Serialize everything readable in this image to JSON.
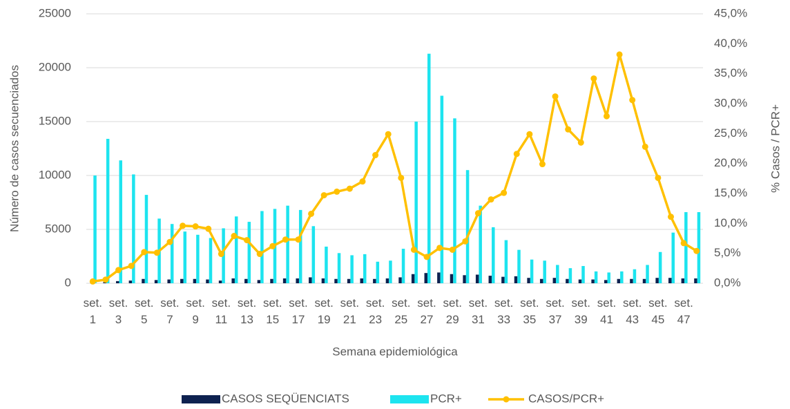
{
  "chart_data": {
    "type": "bar-line",
    "y_label": "Número de casos secuenciados",
    "y2_label": "% Casos / PCR+",
    "x_label": "Semana epidemiológica",
    "categories": [
      "set. 1",
      null,
      "set. 3",
      null,
      "set. 5",
      null,
      "set. 7",
      null,
      "set. 9",
      null,
      "set. 11",
      null,
      "set. 13",
      null,
      "set. 15",
      null,
      "set. 17",
      null,
      "set. 19",
      null,
      "set. 21",
      null,
      "set. 23",
      null,
      "set. 25",
      null,
      "set. 27",
      null,
      "set. 29",
      null,
      "set. 31",
      null,
      "set. 33",
      null,
      "set. 35",
      null,
      "set. 37",
      null,
      "set. 39",
      null,
      "set. 41",
      null,
      "set. 43",
      null,
      "set. 45",
      null,
      "set. 47",
      null
    ],
    "series": [
      {
        "name": "CASOS SEQÜENCIATS",
        "type": "bar",
        "color": "#0e2250",
        "values": [
          50,
          100,
          200,
          250,
          400,
          300,
          350,
          400,
          400,
          350,
          250,
          450,
          400,
          300,
          400,
          450,
          450,
          550,
          450,
          400,
          400,
          450,
          400,
          450,
          550,
          850,
          950,
          1000,
          850,
          750,
          800,
          700,
          600,
          650,
          500,
          400,
          500,
          400,
          350,
          350,
          300,
          400,
          400,
          400,
          500,
          500,
          450,
          450
        ]
      },
      {
        "name": "PCR+",
        "type": "bar",
        "color": "#1de4ef",
        "values": [
          10000,
          13400,
          11400,
          10100,
          8200,
          6000,
          5500,
          4800,
          4500,
          4200,
          5100,
          6200,
          5700,
          6700,
          6900,
          7200,
          6800,
          5300,
          3400,
          2800,
          2600,
          2700,
          2000,
          2100,
          3200,
          15000,
          21300,
          17400,
          15300,
          10500,
          7200,
          5200,
          4000,
          3100,
          2200,
          2100,
          1700,
          1400,
          1600,
          1100,
          1000,
          1100,
          1300,
          1700,
          2900,
          4700,
          6600,
          6600
        ]
      },
      {
        "name": "CASOS/PCR+",
        "type": "line",
        "axis": "y2",
        "color": "#ffc000",
        "values": [
          0.3,
          0.6,
          2.2,
          2.9,
          5.2,
          5.1,
          6.9,
          9.6,
          9.5,
          9.1,
          4.9,
          7.9,
          7.2,
          4.9,
          6.2,
          7.3,
          7.3,
          11.6,
          14.7,
          15.3,
          15.8,
          17.0,
          21.4,
          24.9,
          17.6,
          5.6,
          4.4,
          5.9,
          5.6,
          7.0,
          11.7,
          14.0,
          15.1,
          21.6,
          24.9,
          19.9,
          31.2,
          25.7,
          23.5,
          34.2,
          27.9,
          38.2,
          30.6,
          22.8,
          17.6,
          11.1,
          6.7,
          5.4
        ]
      }
    ],
    "ylim": [
      0,
      25000
    ],
    "yticks": [
      0,
      5000,
      10000,
      15000,
      20000,
      25000
    ],
    "y2lim": [
      0,
      45
    ],
    "y2ticks": [
      {
        "value": 0,
        "label": "0,0%"
      },
      {
        "value": 5,
        "label": "5,0%"
      },
      {
        "value": 10,
        "label": "10,0%"
      },
      {
        "value": 15,
        "label": "15,0%"
      },
      {
        "value": 20,
        "label": "20,0%"
      },
      {
        "value": 25,
        "label": "25,0%"
      },
      {
        "value": 30,
        "label": "30,0%"
      },
      {
        "value": 35,
        "label": "35,0%"
      },
      {
        "value": 40,
        "label": "40,0%"
      },
      {
        "value": 45,
        "label": "45,0%"
      }
    ],
    "grid": true,
    "legend": "bottom"
  }
}
